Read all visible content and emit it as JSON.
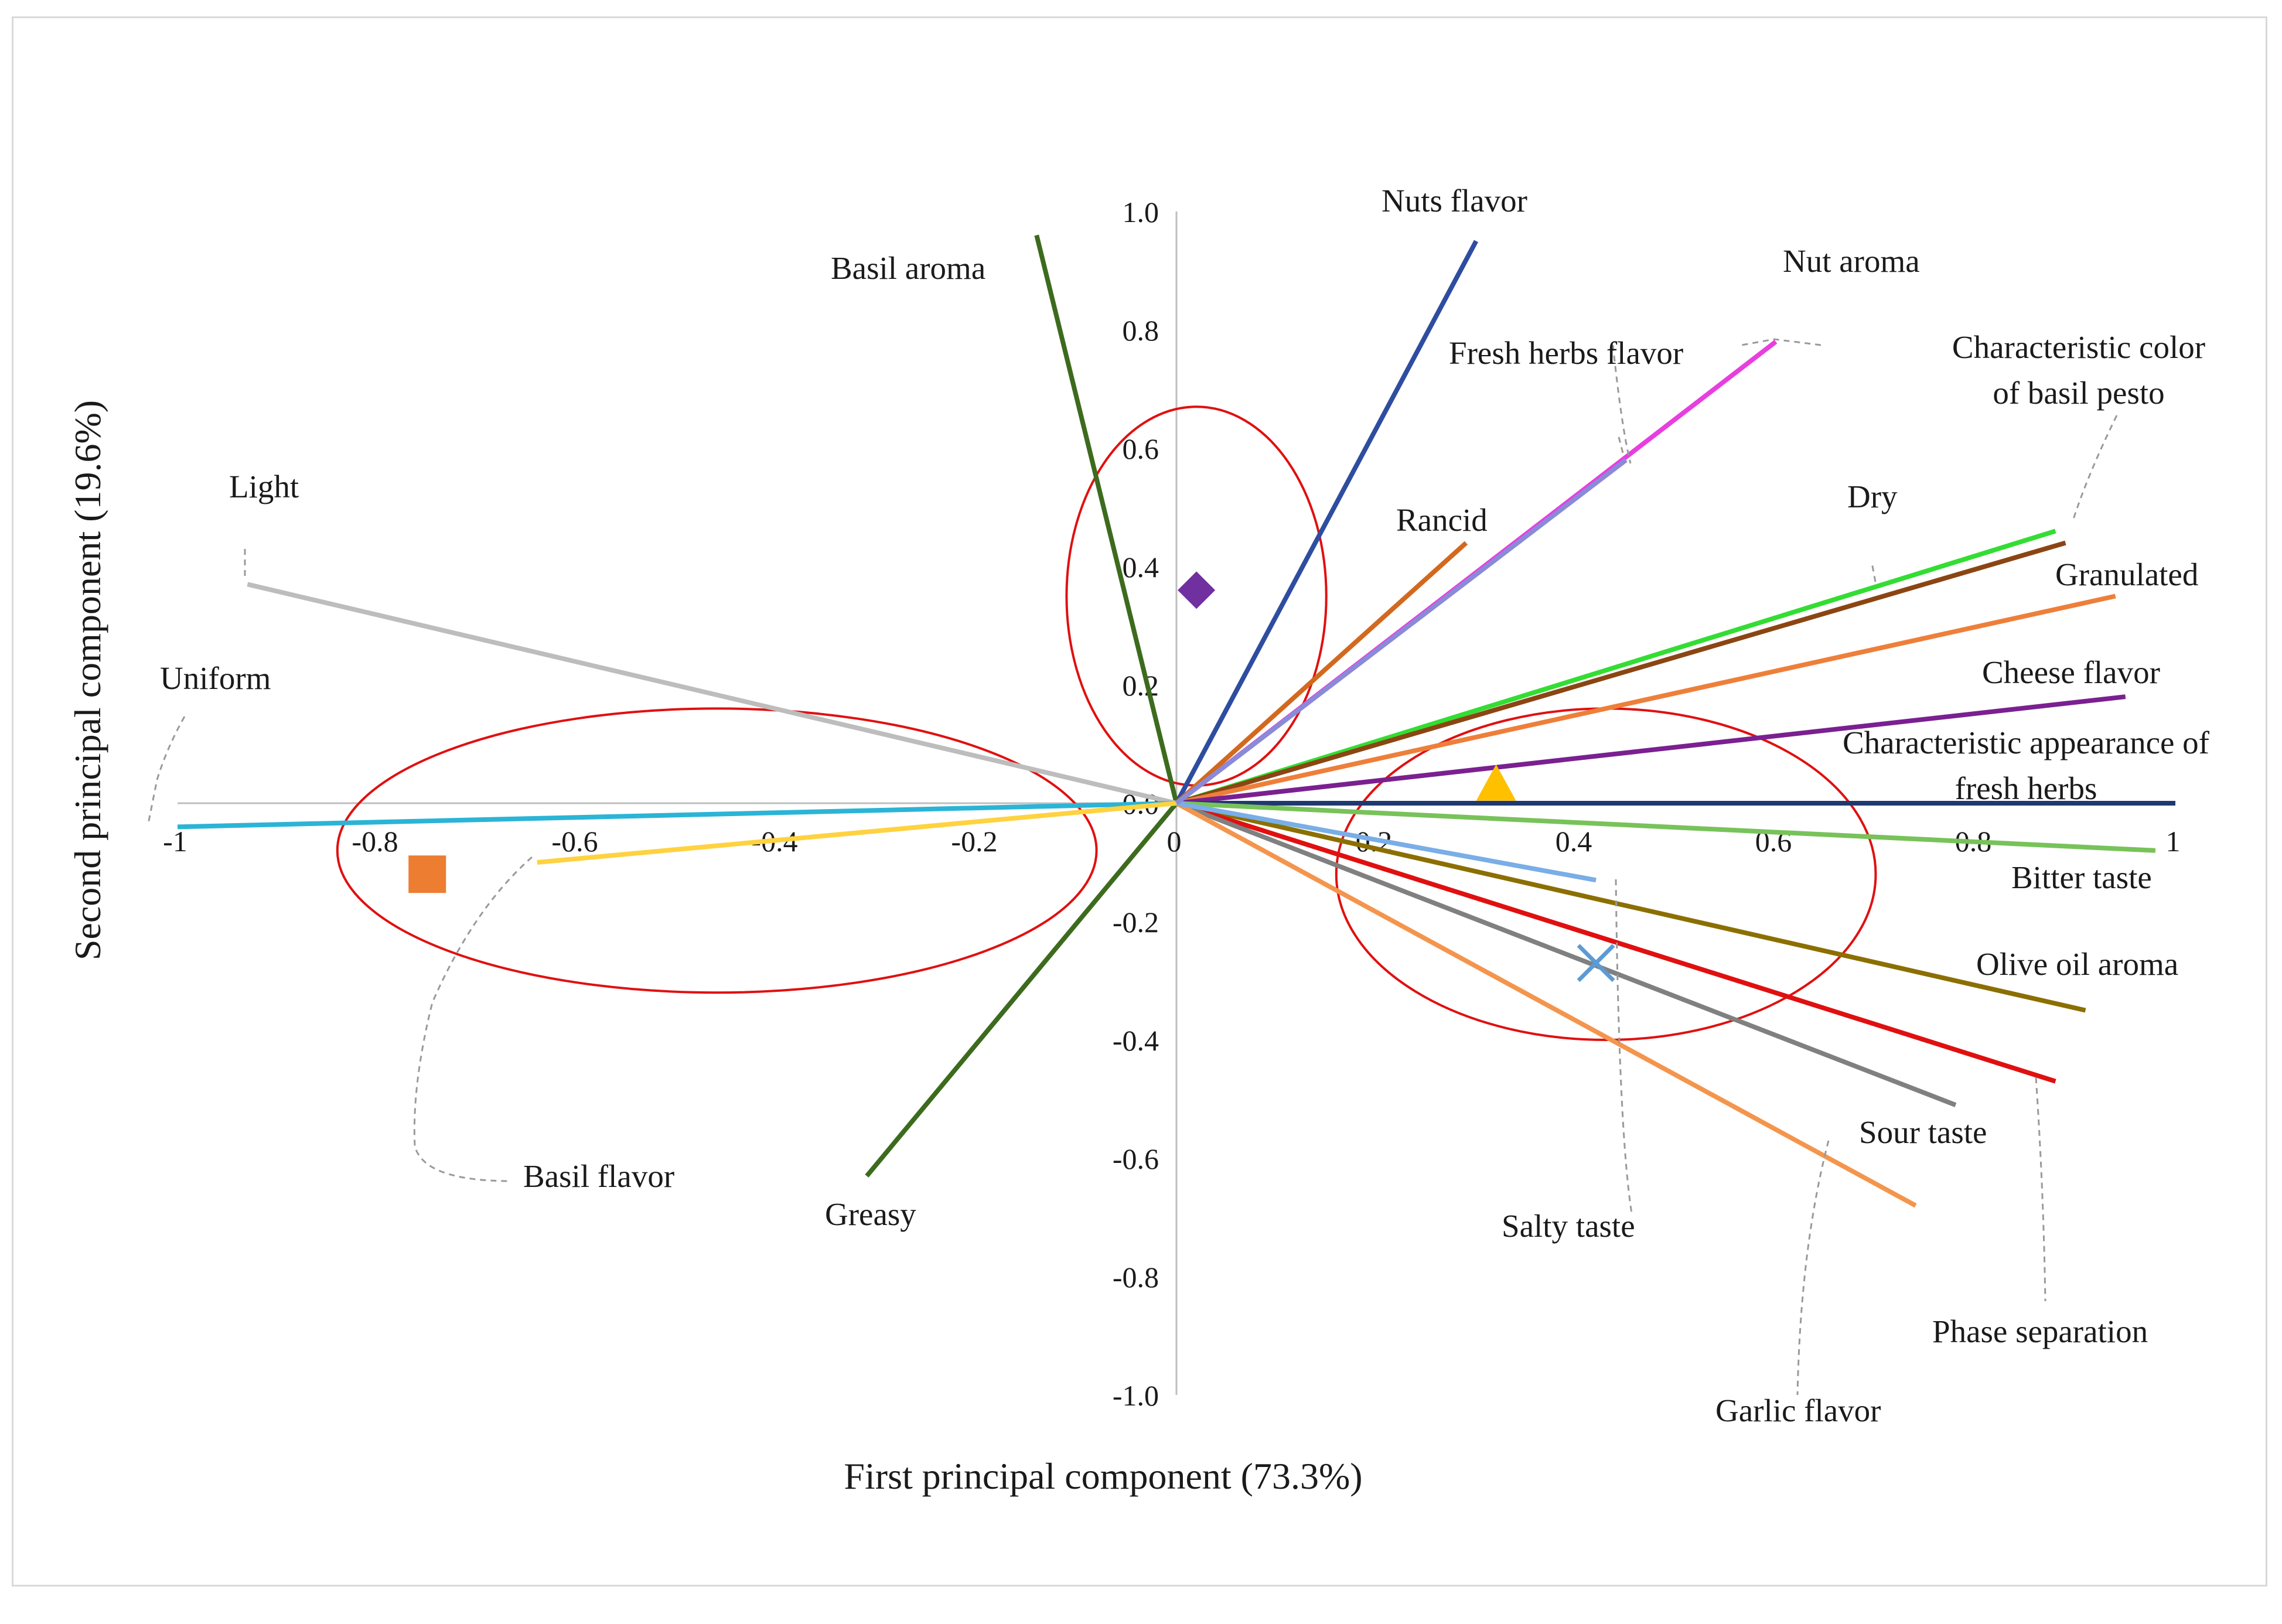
{
  "chart_data": {
    "type": "biplot",
    "xlabel": "First principal component (73.3%)",
    "ylabel": "Second principal component (19.6%)",
    "xlim": [
      -1,
      1
    ],
    "ylim": [
      -1,
      1
    ],
    "x_ticks": [
      "-1",
      "-0.8",
      "-0.6",
      "-0.4",
      "-0.2",
      "0",
      "0.2",
      "0.4",
      "0.6",
      "0.8",
      "1"
    ],
    "y_ticks": [
      "1.0",
      "0.8",
      "0.6",
      "0.4",
      "0.2",
      "0.0",
      "-0.2",
      "-0.4",
      "-0.6",
      "-0.8",
      "-1.0"
    ],
    "vectors": [
      {
        "name": "Nuts flavor",
        "x": 0.3,
        "y": 0.95,
        "color": "#2e4da0"
      },
      {
        "name": "Nut aroma",
        "x": 0.6,
        "y": 0.78,
        "color": "#e83ee0"
      },
      {
        "name": "Fresh herbs flavor",
        "x": 0.45,
        "y": 0.58,
        "color": "#8a8ad8"
      },
      {
        "name": "Basil aroma",
        "x": -0.14,
        "y": 0.96,
        "color": "#3d6b1e"
      },
      {
        "name": "Greasy",
        "x": -0.31,
        "y": -0.63,
        "color": "#3d6b1e"
      },
      {
        "name": "Rancid",
        "x": 0.29,
        "y": 0.44,
        "color": "#d2691e"
      },
      {
        "name": "Dry",
        "x": 0.88,
        "y": 0.46,
        "color": "#33dd33"
      },
      {
        "name": "Characteristic color of basil pesto",
        "x": 0.89,
        "y": 0.44,
        "color": "#8b4513"
      },
      {
        "name": "Granulated",
        "x": 0.94,
        "y": 0.35,
        "color": "#ee7f3a"
      },
      {
        "name": "Cheese flavor",
        "x": 0.95,
        "y": 0.18,
        "color": "#7a2090"
      },
      {
        "name": "Characteristic appearance of fresh herbs",
        "x": 1.0,
        "y": 0.0,
        "color": "#1f3870"
      },
      {
        "name": "Bitter taste",
        "x": 0.98,
        "y": -0.08,
        "color": "#78c25a"
      },
      {
        "name": "Olive oil aroma",
        "x": 0.91,
        "y": -0.35,
        "color": "#8b6f00"
      },
      {
        "name": "Phase separation",
        "x": 0.88,
        "y": -0.47,
        "color": "#e01010"
      },
      {
        "name": "Sour taste",
        "x": 0.78,
        "y": -0.51,
        "color": "#808080"
      },
      {
        "name": "Garlic flavor",
        "x": 0.74,
        "y": -0.68,
        "color": "#f4954d"
      },
      {
        "name": "Salty taste",
        "x": 0.42,
        "y": -0.13,
        "color": "#79aee6"
      },
      {
        "name": "Light",
        "x": -0.93,
        "y": 0.37,
        "color": "#bdbdbd"
      },
      {
        "name": "Uniform",
        "x": -1.0,
        "y": -0.04,
        "color": "#2bb4d6"
      },
      {
        "name": "Basil flavor",
        "x": -0.64,
        "y": -0.1,
        "color": "#ffd23f"
      }
    ],
    "samples": [
      {
        "marker": "diamond",
        "x": 0.02,
        "y": 0.36,
        "color": "#7030a0"
      },
      {
        "marker": "square",
        "x": -0.75,
        "y": -0.12,
        "color": "#ed7d31"
      },
      {
        "marker": "triangle",
        "x": 0.32,
        "y": 0.03,
        "color": "#ffc000"
      },
      {
        "marker": "cross",
        "x": 0.42,
        "y": -0.27,
        "color": "#5b9bd5"
      }
    ],
    "ellipses": [
      {
        "cx": 0.02,
        "cy": 0.35,
        "rx": 0.13,
        "ry": 0.32,
        "color": "#e01010"
      },
      {
        "cx": -0.46,
        "cy": -0.08,
        "rx": 0.38,
        "ry": 0.24,
        "color": "#e01010"
      },
      {
        "cx": 0.43,
        "cy": -0.12,
        "rx": 0.27,
        "ry": 0.28,
        "color": "#e01010"
      }
    ]
  }
}
